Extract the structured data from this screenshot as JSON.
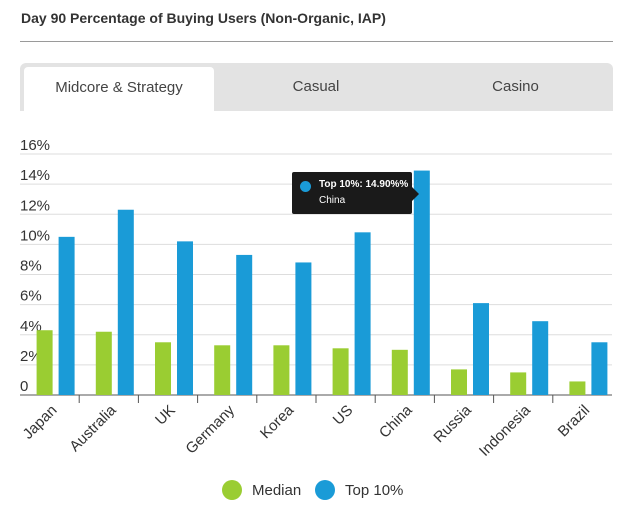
{
  "header": {
    "title": "Day 90 Percentage of Buying Users (Non-Organic, IAP)"
  },
  "tabs": [
    {
      "label": "Midcore & Strategy",
      "active": true
    },
    {
      "label": "Casual",
      "active": false
    },
    {
      "label": "Casino",
      "active": false
    }
  ],
  "colors": {
    "median": "#9acd32",
    "top10": "#1a9bd7",
    "grid": "#dddddd",
    "axis": "#555555"
  },
  "tooltip": {
    "line1": "Top 10%: 14.90%%",
    "line2": "China"
  },
  "legend": [
    {
      "name": "Median",
      "color": "#9acd32"
    },
    {
      "name": "Top 10%",
      "color": "#1a9bd7"
    }
  ],
  "chart_data": {
    "type": "bar",
    "title": "Day 90 Percentage of Buying Users (Non-Organic, IAP)",
    "categories": [
      "Japan",
      "Australia",
      "UK",
      "Germany",
      "Korea",
      "US",
      "China",
      "Russia",
      "Indonesia",
      "Brazil"
    ],
    "series": [
      {
        "name": "Median",
        "values": [
          4.3,
          4.2,
          3.5,
          3.3,
          3.3,
          3.1,
          3.0,
          1.7,
          1.5,
          0.9
        ]
      },
      {
        "name": "Top 10%",
        "values": [
          10.5,
          12.3,
          10.2,
          9.3,
          8.8,
          10.8,
          14.9,
          6.1,
          4.9,
          3.5
        ]
      }
    ],
    "yticks": [
      "0",
      "2%",
      "4%",
      "6%",
      "8%",
      "10%",
      "12%",
      "14%",
      "16%"
    ],
    "ylim": [
      0,
      16
    ],
    "xlabel": "",
    "ylabel": "",
    "grid": true,
    "legend_position": "bottom"
  }
}
